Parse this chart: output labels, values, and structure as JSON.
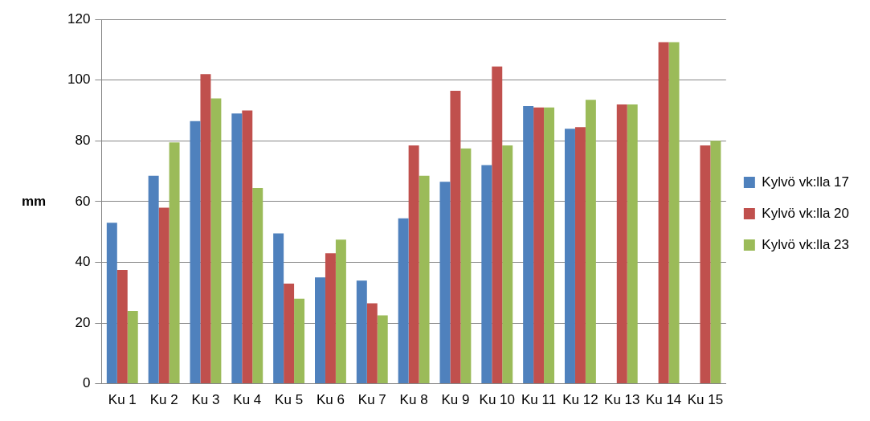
{
  "chart_data": {
    "type": "bar",
    "ylabel": "mm",
    "categories": [
      "Ku 1",
      "Ku 2",
      "Ku 3",
      "Ku 4",
      "Ku 5",
      "Ku 6",
      "Ku 7",
      "Ku 8",
      "Ku 9",
      "Ku 10",
      "Ku 11",
      "Ku 12",
      "Ku 13",
      "Ku 14",
      "Ku 15"
    ],
    "series": [
      {
        "name": "Kylvö vk:lla 17",
        "color": "#4f81bd",
        "values": [
          53,
          68.5,
          86.5,
          89,
          49.5,
          35,
          34,
          54.5,
          66.5,
          72,
          91.5,
          84,
          null,
          null,
          null
        ]
      },
      {
        "name": "Kylvö vk:lla 20",
        "color": "#c0504d",
        "values": [
          37.5,
          58,
          102,
          90,
          33,
          43,
          26.5,
          78.5,
          96.5,
          104.5,
          91,
          84.5,
          92,
          112.5,
          78.5
        ]
      },
      {
        "name": "Kylvö vk:lla 23",
        "color": "#9bbb59",
        "values": [
          24,
          79.5,
          94,
          64.5,
          28,
          47.5,
          22.5,
          68.5,
          77.5,
          78.5,
          91,
          93.5,
          92,
          112.5,
          80
        ]
      }
    ],
    "ylim": [
      0,
      120
    ],
    "yticks": [
      0,
      20,
      40,
      60,
      80,
      100,
      120
    ],
    "grid": "y",
    "legend": "right"
  }
}
